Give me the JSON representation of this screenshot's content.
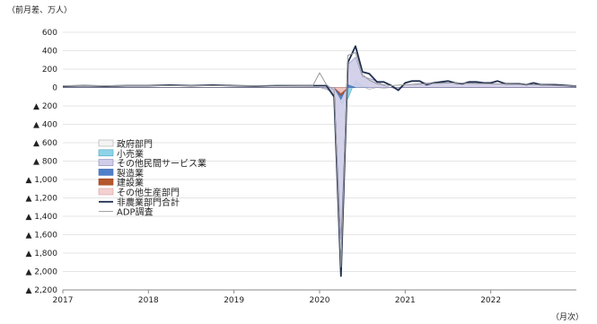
{
  "chart_data": {
    "type": "line",
    "unit_label": "（前月差、万人）",
    "xaxis_label": "（月次）",
    "ylim": [
      -2200,
      600
    ],
    "y_ticks": [
      600,
      400,
      200,
      0,
      -200,
      -400,
      -600,
      -800,
      -1000,
      -1200,
      -1400,
      -1600,
      -1800,
      -2000,
      -2200
    ],
    "y_tick_labels": [
      "600",
      "400",
      "200",
      "0",
      "▲ 200",
      "▲ 400",
      "▲ 600",
      "▲ 800",
      "▲ 1,000",
      "▲ 1,200",
      "▲ 1,400",
      "▲ 1,600",
      "▲ 1,800",
      "▲ 2,000",
      "▲ 2,200"
    ],
    "xlim": [
      2017.0,
      2023.0
    ],
    "x_ticks": [
      2017,
      2018,
      2019,
      2020,
      2021,
      2022
    ],
    "x_tick_labels": [
      "2017",
      "2018",
      "2019",
      "2020",
      "2021",
      "2022"
    ],
    "grid": true,
    "legend_position": "left-middle",
    "series": [
      {
        "name": "政府部門",
        "kind": "area",
        "color": "#f3f3f3",
        "stroke": "#aaaaaa",
        "points": [
          [
            2020.0,
            0
          ],
          [
            2020.17,
            -50
          ],
          [
            2020.25,
            -100
          ],
          [
            2020.33,
            -20
          ],
          [
            2020.42,
            30
          ],
          [
            2020.5,
            10
          ],
          [
            2020.58,
            -20
          ],
          [
            2020.67,
            0
          ],
          [
            2020.75,
            -10
          ],
          [
            2020.83,
            0
          ]
        ]
      },
      {
        "name": "小売業",
        "kind": "area",
        "color": "#8fd3e8",
        "stroke": "#4aa7c4",
        "points": [
          [
            2020.17,
            0
          ],
          [
            2020.25,
            -180
          ],
          [
            2020.33,
            -120
          ],
          [
            2020.42,
            80
          ],
          [
            2020.5,
            20
          ],
          [
            2020.58,
            0
          ]
        ]
      },
      {
        "name": "その他民間サービス業",
        "kind": "area",
        "color": "#cfcde8",
        "stroke": "#8a86b8",
        "points": [
          [
            2017.0,
            0
          ],
          [
            2020.0,
            0
          ],
          [
            2020.08,
            -10
          ],
          [
            2020.17,
            -80
          ],
          [
            2020.25,
            -1650
          ],
          [
            2020.33,
            250
          ],
          [
            2020.42,
            330
          ],
          [
            2020.5,
            120
          ],
          [
            2020.58,
            100
          ],
          [
            2020.67,
            70
          ],
          [
            2020.75,
            20
          ],
          [
            2020.83,
            0
          ],
          [
            2020.92,
            -20
          ],
          [
            2021.0,
            30
          ],
          [
            2021.25,
            50
          ],
          [
            2021.5,
            50
          ],
          [
            2021.75,
            50
          ],
          [
            2022.0,
            40
          ],
          [
            2022.5,
            30
          ],
          [
            2022.92,
            10
          ],
          [
            2023.0,
            0
          ]
        ]
      },
      {
        "name": "製造業",
        "kind": "area",
        "color": "#4f7fc9",
        "stroke": "#3e6db8",
        "points": [
          [
            2020.17,
            0
          ],
          [
            2020.25,
            -130
          ],
          [
            2020.33,
            30
          ],
          [
            2020.42,
            0
          ]
        ]
      },
      {
        "name": "建設業",
        "kind": "area",
        "color": "#b5562c",
        "stroke": "#9e4522",
        "points": [
          [
            2020.17,
            0
          ],
          [
            2020.25,
            -90
          ],
          [
            2020.33,
            0
          ]
        ]
      },
      {
        "name": "その他生産部門",
        "kind": "area",
        "color": "#f3d0d0",
        "stroke": "#d9a0a0",
        "points": [
          [
            2020.17,
            0
          ],
          [
            2020.25,
            -60
          ],
          [
            2020.33,
            0
          ]
        ]
      },
      {
        "name": "非農業部門合計",
        "kind": "line",
        "color": "#1f2e4d",
        "width": 1.8,
        "points": [
          [
            2017.0,
            15
          ],
          [
            2017.25,
            20
          ],
          [
            2017.5,
            15
          ],
          [
            2017.75,
            20
          ],
          [
            2018.0,
            20
          ],
          [
            2018.25,
            25
          ],
          [
            2018.5,
            20
          ],
          [
            2018.75,
            25
          ],
          [
            2019.0,
            20
          ],
          [
            2019.25,
            15
          ],
          [
            2019.5,
            20
          ],
          [
            2019.75,
            20
          ],
          [
            2020.0,
            20
          ],
          [
            2020.08,
            20
          ],
          [
            2020.17,
            -100
          ],
          [
            2020.25,
            -2050
          ],
          [
            2020.33,
            270
          ],
          [
            2020.42,
            450
          ],
          [
            2020.5,
            170
          ],
          [
            2020.58,
            150
          ],
          [
            2020.67,
            60
          ],
          [
            2020.75,
            60
          ],
          [
            2020.83,
            25
          ],
          [
            2020.92,
            -30
          ],
          [
            2021.0,
            50
          ],
          [
            2021.08,
            70
          ],
          [
            2021.17,
            70
          ],
          [
            2021.25,
            30
          ],
          [
            2021.33,
            50
          ],
          [
            2021.42,
            60
          ],
          [
            2021.5,
            70
          ],
          [
            2021.58,
            50
          ],
          [
            2021.67,
            40
          ],
          [
            2021.75,
            60
          ],
          [
            2021.83,
            60
          ],
          [
            2021.92,
            50
          ],
          [
            2022.0,
            50
          ],
          [
            2022.08,
            70
          ],
          [
            2022.17,
            40
          ],
          [
            2022.25,
            40
          ],
          [
            2022.33,
            40
          ],
          [
            2022.42,
            30
          ],
          [
            2022.5,
            50
          ],
          [
            2022.58,
            30
          ],
          [
            2022.67,
            30
          ],
          [
            2022.75,
            30
          ],
          [
            2022.83,
            25
          ],
          [
            2022.92,
            20
          ],
          [
            2023.0,
            15
          ]
        ]
      },
      {
        "name": "ADP調査",
        "kind": "line",
        "color": "#9a9a9a",
        "width": 1.0,
        "points": [
          [
            2017.0,
            20
          ],
          [
            2017.5,
            20
          ],
          [
            2018.0,
            20
          ],
          [
            2018.5,
            20
          ],
          [
            2019.0,
            20
          ],
          [
            2019.5,
            15
          ],
          [
            2019.92,
            20
          ],
          [
            2020.0,
            160
          ],
          [
            2020.08,
            30
          ],
          [
            2020.17,
            -30
          ],
          [
            2020.25,
            -1950
          ],
          [
            2020.33,
            350
          ],
          [
            2020.42,
            380
          ],
          [
            2020.5,
            140
          ],
          [
            2020.58,
            80
          ],
          [
            2020.67,
            40
          ],
          [
            2020.83,
            20
          ],
          [
            2021.0,
            30
          ],
          [
            2021.5,
            50
          ],
          [
            2022.0,
            40
          ],
          [
            2022.5,
            30
          ],
          [
            2023.0,
            15
          ]
        ]
      }
    ]
  }
}
